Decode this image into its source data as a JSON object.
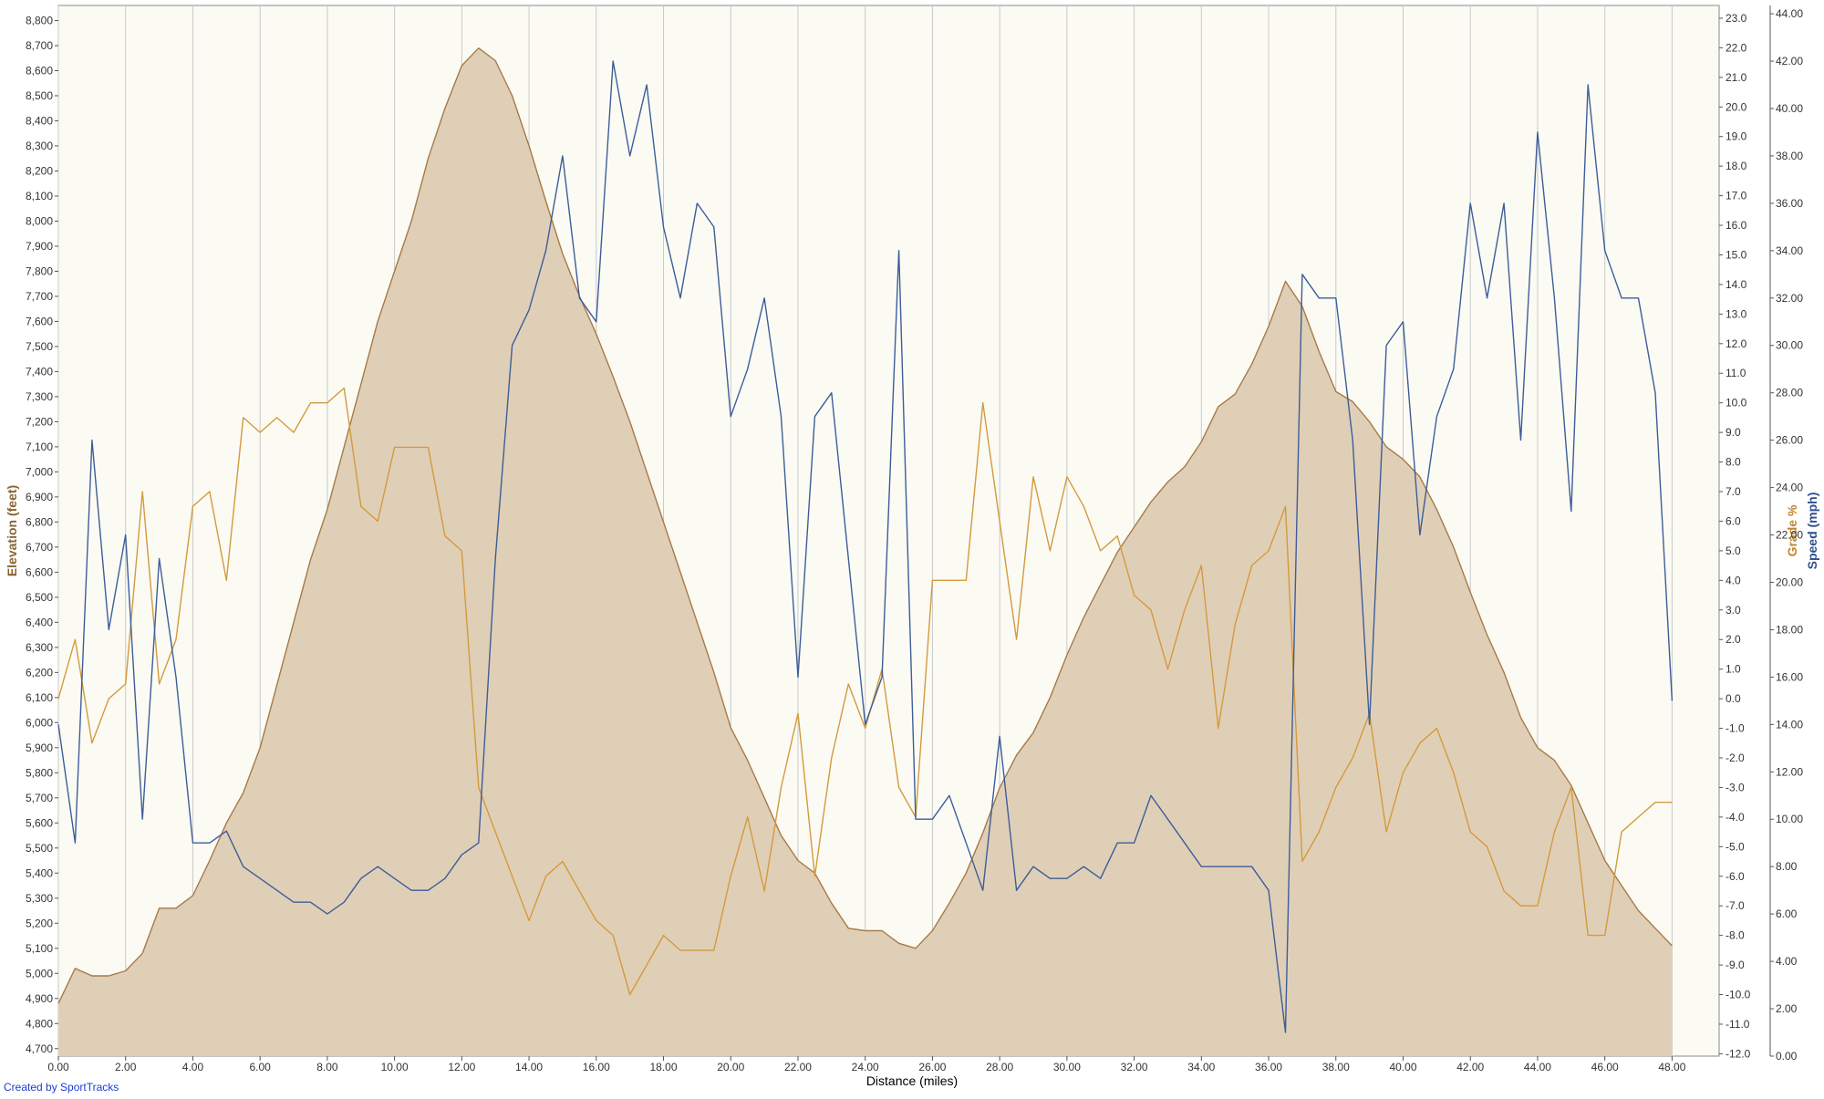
{
  "chart_data": {
    "type": "line",
    "xlabel": "Distance (miles)",
    "ylabel": "Elevation (feet)",
    "y2label": "Grade %",
    "y3label": "Speed (mph)",
    "credit": "Created by SportTracks",
    "xlim": [
      0,
      49.4
    ],
    "ylim": [
      4670,
      8860
    ],
    "y2lim": [
      -12.08,
      23.43
    ],
    "y3lim": [
      0,
      44.35
    ],
    "xticks": [
      {
        "value": 0,
        "label": "0.00"
      },
      {
        "value": 2,
        "label": "2.00"
      },
      {
        "value": 4,
        "label": "4.00"
      },
      {
        "value": 6,
        "label": "6.00"
      },
      {
        "value": 8,
        "label": "8.00"
      },
      {
        "value": 10,
        "label": "10.00"
      },
      {
        "value": 12,
        "label": "12.00"
      },
      {
        "value": 14,
        "label": "14.00"
      },
      {
        "value": 16,
        "label": "16.00"
      },
      {
        "value": 18,
        "label": "18.00"
      },
      {
        "value": 20,
        "label": "20.00"
      },
      {
        "value": 22,
        "label": "22.00"
      },
      {
        "value": 24,
        "label": "24.00"
      },
      {
        "value": 26,
        "label": "26.00"
      },
      {
        "value": 28,
        "label": "28.00"
      },
      {
        "value": 30,
        "label": "30.00"
      },
      {
        "value": 32,
        "label": "32.00"
      },
      {
        "value": 34,
        "label": "34.00"
      },
      {
        "value": 36,
        "label": "36.00"
      },
      {
        "value": 38,
        "label": "38.00"
      },
      {
        "value": 40,
        "label": "40.00"
      },
      {
        "value": 42,
        "label": "42.00"
      },
      {
        "value": 44,
        "label": "44.00"
      },
      {
        "value": 46,
        "label": "46.00"
      },
      {
        "value": 48,
        "label": "48.00"
      }
    ],
    "yticks": [
      {
        "value": 4700,
        "label": "4,700"
      },
      {
        "value": 4800,
        "label": "4,800"
      },
      {
        "value": 4900,
        "label": "4,900"
      },
      {
        "value": 5000,
        "label": "5,000"
      },
      {
        "value": 5100,
        "label": "5,100"
      },
      {
        "value": 5200,
        "label": "5,200"
      },
      {
        "value": 5300,
        "label": "5,300"
      },
      {
        "value": 5400,
        "label": "5,400"
      },
      {
        "value": 5500,
        "label": "5,500"
      },
      {
        "value": 5600,
        "label": "5,600"
      },
      {
        "value": 5700,
        "label": "5,700"
      },
      {
        "value": 5800,
        "label": "5,800"
      },
      {
        "value": 5900,
        "label": "5,900"
      },
      {
        "value": 6000,
        "label": "6,000"
      },
      {
        "value": 6100,
        "label": "6,100"
      },
      {
        "value": 6200,
        "label": "6,200"
      },
      {
        "value": 6300,
        "label": "6,300"
      },
      {
        "value": 6400,
        "label": "6,400"
      },
      {
        "value": 6500,
        "label": "6,500"
      },
      {
        "value": 6600,
        "label": "6,600"
      },
      {
        "value": 6700,
        "label": "6,700"
      },
      {
        "value": 6800,
        "label": "6,800"
      },
      {
        "value": 6900,
        "label": "6,900"
      },
      {
        "value": 7000,
        "label": "7,000"
      },
      {
        "value": 7100,
        "label": "7,100"
      },
      {
        "value": 7200,
        "label": "7,200"
      },
      {
        "value": 7300,
        "label": "7,300"
      },
      {
        "value": 7400,
        "label": "7,400"
      },
      {
        "value": 7500,
        "label": "7,500"
      },
      {
        "value": 7600,
        "label": "7,600"
      },
      {
        "value": 7700,
        "label": "7,700"
      },
      {
        "value": 7800,
        "label": "7,800"
      },
      {
        "value": 7900,
        "label": "7,900"
      },
      {
        "value": 8000,
        "label": "8,000"
      },
      {
        "value": 8100,
        "label": "8,100"
      },
      {
        "value": 8200,
        "label": "8,200"
      },
      {
        "value": 8300,
        "label": "8,300"
      },
      {
        "value": 8400,
        "label": "8,400"
      },
      {
        "value": 8500,
        "label": "8,500"
      },
      {
        "value": 8600,
        "label": "8,600"
      },
      {
        "value": 8700,
        "label": "8,700"
      },
      {
        "value": 8800,
        "label": "8,800"
      }
    ],
    "y2ticks": [
      {
        "value": -12,
        "label": "-12.0"
      },
      {
        "value": -11,
        "label": "-11.0"
      },
      {
        "value": -10,
        "label": "-10.0"
      },
      {
        "value": -9,
        "label": "-9.0"
      },
      {
        "value": -8,
        "label": "-8.0"
      },
      {
        "value": -7,
        "label": "-7.0"
      },
      {
        "value": -6,
        "label": "-6.0"
      },
      {
        "value": -5,
        "label": "-5.0"
      },
      {
        "value": -4,
        "label": "-4.0"
      },
      {
        "value": -3,
        "label": "-3.0"
      },
      {
        "value": -2,
        "label": "-2.0"
      },
      {
        "value": -1,
        "label": "-1.0"
      },
      {
        "value": 0,
        "label": "0.0"
      },
      {
        "value": 1,
        "label": "1.0"
      },
      {
        "value": 2,
        "label": "2.0"
      },
      {
        "value": 3,
        "label": "3.0"
      },
      {
        "value": 4,
        "label": "4.0"
      },
      {
        "value": 5,
        "label": "5.0"
      },
      {
        "value": 6,
        "label": "6.0"
      },
      {
        "value": 7,
        "label": "7.0"
      },
      {
        "value": 8,
        "label": "8.0"
      },
      {
        "value": 9,
        "label": "9.0"
      },
      {
        "value": 10,
        "label": "10.0"
      },
      {
        "value": 11,
        "label": "11.0"
      },
      {
        "value": 12,
        "label": "12.0"
      },
      {
        "value": 13,
        "label": "13.0"
      },
      {
        "value": 14,
        "label": "14.0"
      },
      {
        "value": 15,
        "label": "15.0"
      },
      {
        "value": 16,
        "label": "16.0"
      },
      {
        "value": 17,
        "label": "17.0"
      },
      {
        "value": 18,
        "label": "18.0"
      },
      {
        "value": 19,
        "label": "19.0"
      },
      {
        "value": 20,
        "label": "20.0"
      },
      {
        "value": 21,
        "label": "21.0"
      },
      {
        "value": 22,
        "label": "22.0"
      },
      {
        "value": 23,
        "label": "23.0"
      }
    ],
    "y3ticks": [
      {
        "value": 0,
        "label": "0.00"
      },
      {
        "value": 2,
        "label": "2.00"
      },
      {
        "value": 4,
        "label": "4.00"
      },
      {
        "value": 6,
        "label": "6.00"
      },
      {
        "value": 8,
        "label": "8.00"
      },
      {
        "value": 10,
        "label": "10.00"
      },
      {
        "value": 12,
        "label": "12.00"
      },
      {
        "value": 14,
        "label": "14.00"
      },
      {
        "value": 16,
        "label": "16.00"
      },
      {
        "value": 18,
        "label": "18.00"
      },
      {
        "value": 20,
        "label": "20.00"
      },
      {
        "value": 22,
        "label": "22.00"
      },
      {
        "value": 24,
        "label": "24.00"
      },
      {
        "value": 26,
        "label": "26.00"
      },
      {
        "value": 28,
        "label": "28.00"
      },
      {
        "value": 30,
        "label": "30.00"
      },
      {
        "value": 32,
        "label": "32.00"
      },
      {
        "value": 34,
        "label": "34.00"
      },
      {
        "value": 36,
        "label": "36.00"
      },
      {
        "value": 38,
        "label": "38.00"
      },
      {
        "value": 40,
        "label": "40.00"
      },
      {
        "value": 42,
        "label": "42.00"
      },
      {
        "value": 44,
        "label": "44.00"
      }
    ],
    "grid": "x",
    "x": [
      0,
      0.5,
      1,
      1.5,
      2,
      2.5,
      3,
      3.5,
      4,
      4.5,
      5,
      5.5,
      6,
      6.5,
      7,
      7.5,
      8,
      8.5,
      9,
      9.5,
      10,
      10.5,
      11,
      11.5,
      12,
      12.5,
      13,
      13.5,
      14,
      14.5,
      15,
      15.5,
      16,
      16.5,
      17,
      17.5,
      18,
      18.5,
      19,
      19.5,
      20,
      20.5,
      21,
      21.5,
      22,
      22.5,
      23,
      23.5,
      24,
      24.5,
      25,
      25.5,
      26,
      26.5,
      27,
      27.5,
      28,
      28.5,
      29,
      29.5,
      30,
      30.5,
      31,
      31.5,
      32,
      32.5,
      33,
      33.5,
      34,
      34.5,
      35,
      35.5,
      36,
      36.5,
      37,
      37.5,
      38,
      38.5,
      39,
      39.5,
      40,
      40.5,
      41,
      41.5,
      42,
      42.5,
      43,
      43.5,
      44,
      44.5,
      45,
      45.5,
      46,
      46.5,
      47,
      47.5,
      48
    ],
    "series": [
      {
        "name": "Elevation",
        "axis": "y",
        "fill": true,
        "color": "#a77a45",
        "fillcolor": "#e0cfb7",
        "values": [
          4880,
          5020,
          4990,
          4990,
          5010,
          5080,
          5260,
          5260,
          5310,
          5450,
          5600,
          5720,
          5900,
          6150,
          6400,
          6650,
          6850,
          7100,
          7350,
          7600,
          7800,
          8000,
          8250,
          8450,
          8620,
          8690,
          8640,
          8500,
          8300,
          8080,
          7870,
          7700,
          7550,
          7380,
          7200,
          7000,
          6800,
          6600,
          6400,
          6200,
          5980,
          5850,
          5700,
          5550,
          5450,
          5400,
          5280,
          5180,
          5170,
          5170,
          5120,
          5100,
          5170,
          5280,
          5400,
          5560,
          5740,
          5870,
          5960,
          6100,
          6270,
          6420,
          6550,
          6680,
          6780,
          6880,
          6960,
          7020,
          7120,
          7260,
          7310,
          7430,
          7580,
          7760,
          7660,
          7480,
          7320,
          7280,
          7200,
          7100,
          7050,
          6980,
          6850,
          6700,
          6520,
          6350,
          6200,
          6020,
          5900,
          5850,
          5750,
          5600,
          5450,
          5350,
          5250,
          5180,
          5110
        ]
      },
      {
        "name": "Grade",
        "axis": "y2",
        "color": "#d49a3c",
        "values": [
          0,
          2,
          -1.5,
          0,
          0.5,
          7,
          0.5,
          2,
          6.5,
          7,
          4,
          9.5,
          9,
          9.5,
          9,
          10,
          10,
          10.5,
          6.5,
          6,
          8.5,
          8.5,
          8.5,
          5.5,
          5,
          -3,
          -4.5,
          -6,
          -7.5,
          -6,
          -5.5,
          -6.5,
          -7.5,
          -8,
          -10,
          -9,
          -8,
          -8.5,
          -8.5,
          -8.5,
          -6,
          -4,
          -6.5,
          -3,
          -0.5,
          -6,
          -2,
          0.5,
          -1,
          1,
          -3,
          -4,
          4,
          4,
          4,
          10,
          6,
          2,
          7.5,
          5,
          7.5,
          6.5,
          5,
          5.5,
          3.5,
          3,
          1,
          3,
          4.5,
          -1,
          2.5,
          4.5,
          5,
          6.5,
          -5.5,
          -4.5,
          -3,
          -2,
          -0.5,
          -4.5,
          -2.5,
          -1.5,
          -1,
          -2.5,
          -4.5,
          -5,
          -6.5,
          -7,
          -7,
          -4.5,
          -3,
          -8,
          -8,
          -4.5,
          -4,
          -3.5,
          -3.5
        ]
      },
      {
        "name": "Speed",
        "axis": "y3",
        "color": "#3d5d99",
        "values": [
          14,
          9,
          26,
          18,
          22,
          10,
          21,
          16,
          9,
          9,
          9.5,
          8,
          7.5,
          7,
          6.5,
          6.5,
          6,
          6.5,
          7.5,
          8,
          7.5,
          7,
          7,
          7.5,
          8.5,
          9,
          21,
          30,
          31.5,
          34,
          38,
          32,
          31,
          42,
          38,
          41,
          35,
          32,
          36,
          35,
          27,
          29,
          32,
          27,
          16,
          27,
          28,
          21,
          14,
          16,
          34,
          10,
          10,
          11,
          9,
          7,
          13.5,
          7,
          8,
          7.5,
          7.5,
          8,
          7.5,
          9,
          9,
          11,
          10,
          9,
          8,
          8,
          8,
          8,
          7,
          1,
          33,
          32,
          32,
          26,
          14,
          30,
          31,
          22,
          27,
          29,
          36,
          32,
          36,
          26,
          39,
          32,
          23,
          41,
          34,
          32,
          32,
          28,
          15
        ]
      }
    ]
  }
}
